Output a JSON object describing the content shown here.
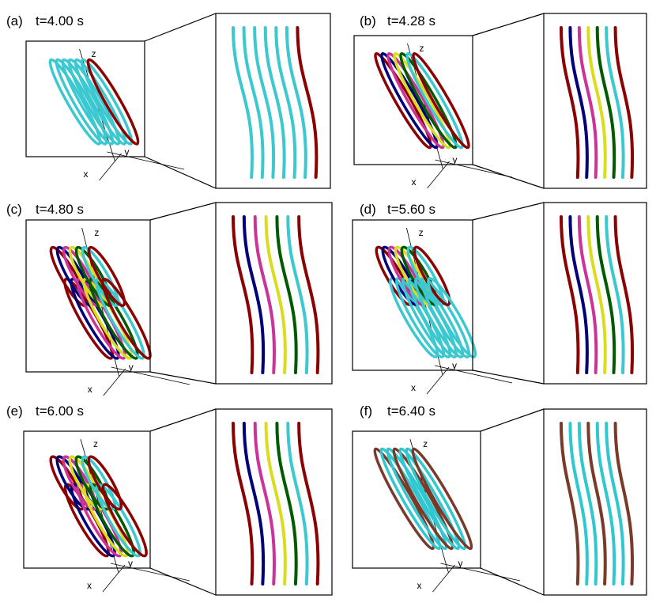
{
  "panels": [
    {
      "label": "(a)",
      "time": "t=4.00 s",
      "axes": {
        "x": "x",
        "y": "y",
        "z": "z"
      }
    },
    {
      "label": "(b)",
      "time": "t=4.28 s",
      "axes": {
        "x": "x",
        "y": "y",
        "z": "z"
      }
    },
    {
      "label": "(c)",
      "time": "t=4.80 s",
      "axes": {
        "x": "x",
        "y": "y",
        "z": "z"
      }
    },
    {
      "label": "(d)",
      "time": "t=5.60 s",
      "axes": {
        "x": "x",
        "y": "y",
        "z": "z"
      }
    },
    {
      "label": "(e)",
      "time": "t=6.00 s",
      "axes": {
        "x": "x",
        "y": "y",
        "z": "z"
      }
    },
    {
      "label": "(f)",
      "time": "t=6.40 s",
      "axes": {
        "x": "x",
        "y": "y",
        "z": "z"
      }
    }
  ]
}
